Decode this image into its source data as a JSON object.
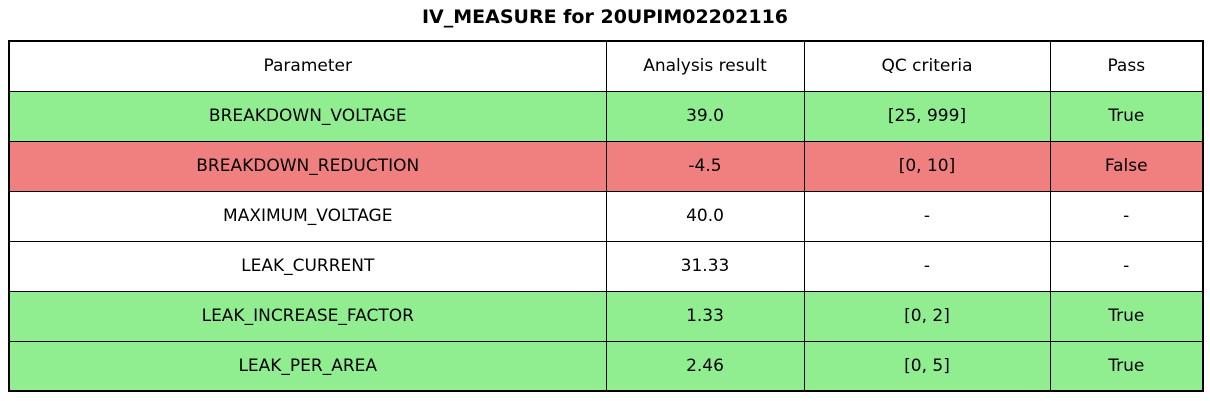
{
  "title": "IV_MEASURE for 20UPIM02202116",
  "colors": {
    "pass_green": "#90ee90",
    "fail_red": "#f08080",
    "neutral_white": "#ffffff",
    "border_black": "#000000",
    "text_black": "#000000"
  },
  "chart_data": {
    "type": "table",
    "title": "IV_MEASURE for 20UPIM02202116",
    "columns": [
      "Parameter",
      "Analysis result",
      "QC criteria",
      "Pass"
    ],
    "rows": [
      {
        "parameter": "BREAKDOWN_VOLTAGE",
        "analysis_result": "39.0",
        "qc_criteria": "[25, 999]",
        "pass": "True",
        "status": "pass"
      },
      {
        "parameter": "BREAKDOWN_REDUCTION",
        "analysis_result": "-4.5",
        "qc_criteria": "[0, 10]",
        "pass": "False",
        "status": "fail"
      },
      {
        "parameter": "MAXIMUM_VOLTAGE",
        "analysis_result": "40.0",
        "qc_criteria": "-",
        "pass": "-",
        "status": "neutral"
      },
      {
        "parameter": "LEAK_CURRENT",
        "analysis_result": "31.33",
        "qc_criteria": "-",
        "pass": "-",
        "status": "neutral"
      },
      {
        "parameter": "LEAK_INCREASE_FACTOR",
        "analysis_result": "1.33",
        "qc_criteria": "[0, 2]",
        "pass": "True",
        "status": "pass"
      },
      {
        "parameter": "LEAK_PER_AREA",
        "analysis_result": "2.46",
        "qc_criteria": "[0, 5]",
        "pass": "True",
        "status": "pass"
      }
    ],
    "status_colors": {
      "pass": "#90ee90",
      "fail": "#f08080",
      "neutral": "#ffffff"
    },
    "layout": {
      "grid": true,
      "header_background": "#ffffff"
    }
  }
}
